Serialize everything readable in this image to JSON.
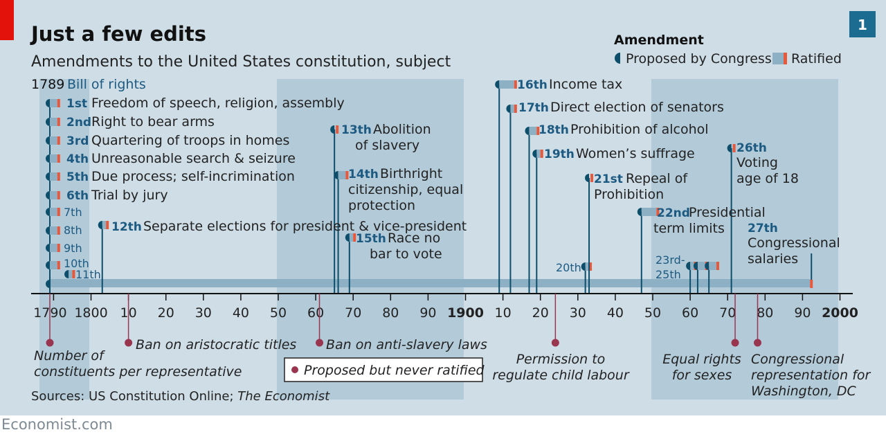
{
  "title": "Just a few edits",
  "subtitle": "Amendments to the United States constitution, subject",
  "chart_number": "1",
  "legend": {
    "heading": "Amendment",
    "proposed": "Proposed by Congress",
    "ratified": "Ratified",
    "never_ratified": "Proposed but never ratified"
  },
  "source": {
    "prefix": "Sources: US Constitution Online; ",
    "italic": "The Economist"
  },
  "brand": "Economist.com",
  "colors": {
    "background": "#cfdde6",
    "shaded_band": "#b3cad8",
    "proposed": "#0d4e6a",
    "ratified": "#e8583a",
    "span": "#8db0c5",
    "never_ratified": "#9a3550",
    "title": "#111111",
    "label_number": "#1c5a82",
    "brand_red": "#e3120b",
    "badge": "#1c6c92"
  },
  "chart_data": {
    "type": "timeline",
    "x_range": [
      1785,
      2000
    ],
    "x_tick_labels": [
      "1790",
      "1800",
      "10",
      "20",
      "30",
      "40",
      "50",
      "60",
      "70",
      "80",
      "90",
      "1900",
      "10",
      "20",
      "30",
      "40",
      "50",
      "60",
      "70",
      "80",
      "90",
      "2000"
    ],
    "x_tick_years": [
      1790,
      1800,
      1810,
      1820,
      1830,
      1840,
      1850,
      1860,
      1870,
      1880,
      1890,
      1900,
      1910,
      1920,
      1930,
      1940,
      1950,
      1960,
      1970,
      1980,
      1990,
      2000
    ],
    "shaded_year_ranges": [
      [
        1787,
        1801
      ],
      [
        1850,
        1900
      ],
      [
        1950,
        2000
      ]
    ],
    "group_label": {
      "year": "1789",
      "text": "Bill of rights"
    },
    "amendments": [
      {
        "num": "1st",
        "text": "Freedom of speech, religion, assembly",
        "proposed": 1789,
        "ratified": 1791
      },
      {
        "num": "2nd",
        "text": "Right to bear arms",
        "proposed": 1789,
        "ratified": 1791
      },
      {
        "num": "3rd",
        "text": "Quartering of troops in homes",
        "proposed": 1789,
        "ratified": 1791
      },
      {
        "num": "4th",
        "text": "Unreasonable search & seizure",
        "proposed": 1789,
        "ratified": 1791
      },
      {
        "num": "5th",
        "text": "Due process; self-incrimination",
        "proposed": 1789,
        "ratified": 1791
      },
      {
        "num": "6th",
        "text": "Trial by jury",
        "proposed": 1789,
        "ratified": 1791
      },
      {
        "num": "7th",
        "text": "",
        "proposed": 1789,
        "ratified": 1791
      },
      {
        "num": "8th",
        "text": "",
        "proposed": 1789,
        "ratified": 1791
      },
      {
        "num": "9th",
        "text": "",
        "proposed": 1789,
        "ratified": 1791
      },
      {
        "num": "10th",
        "text": "",
        "proposed": 1789,
        "ratified": 1791
      },
      {
        "num": "11th",
        "text": "",
        "proposed": 1794,
        "ratified": 1795
      },
      {
        "num": "12th",
        "text": "Separate elections for president & vice-president",
        "proposed": 1803,
        "ratified": 1804
      },
      {
        "num": "13th",
        "text": "Abolition of slavery",
        "proposed": 1865,
        "ratified": 1865
      },
      {
        "num": "14th",
        "text": "Birthright citizenship, equal protection",
        "proposed": 1866,
        "ratified": 1868
      },
      {
        "num": "15th",
        "text": "Race no bar to vote",
        "proposed": 1869,
        "ratified": 1870
      },
      {
        "num": "16th",
        "text": "Income tax",
        "proposed": 1909,
        "ratified": 1913
      },
      {
        "num": "17th",
        "text": "Direct election of senators",
        "proposed": 1912,
        "ratified": 1913
      },
      {
        "num": "18th",
        "text": "Prohibition of alcohol",
        "proposed": 1917,
        "ratified": 1919
      },
      {
        "num": "19th",
        "text": "Women’s suffrage",
        "proposed": 1919,
        "ratified": 1920
      },
      {
        "num": "20th",
        "text": "",
        "proposed": 1932,
        "ratified": 1933
      },
      {
        "num": "21st",
        "text": "Repeal of Prohibition",
        "proposed": 1933,
        "ratified": 1933
      },
      {
        "num": "22nd",
        "text": "Presidential term limits",
        "proposed": 1947,
        "ratified": 1951
      },
      {
        "num": "23rd",
        "text": "",
        "proposed": 1960,
        "ratified": 1961
      },
      {
        "num": "24th",
        "text": "",
        "proposed": 1962,
        "ratified": 1964
      },
      {
        "num": "25th",
        "text": "",
        "proposed": 1965,
        "ratified": 1967
      },
      {
        "num": "26th",
        "text": "Voting age of 18",
        "proposed": 1971,
        "ratified": 1971
      },
      {
        "num": "27th",
        "text": "Congressional salaries",
        "proposed": 1789,
        "ratified": 1992
      }
    ],
    "grouped_label": {
      "lines": [
        "23rd-",
        "25th"
      ]
    },
    "never_ratified": [
      {
        "text": "Number of constituents per representative",
        "year": 1789
      },
      {
        "text": "Ban on aristocratic titles",
        "year": 1810
      },
      {
        "text": "Ban on anti-slavery laws",
        "year": 1861
      },
      {
        "text": "Permission to regulate child labour",
        "year": 1924
      },
      {
        "text": "Equal rights for sexes",
        "year": 1972
      },
      {
        "text": "Congressional representation for Washington, DC",
        "year": 1978
      }
    ]
  }
}
